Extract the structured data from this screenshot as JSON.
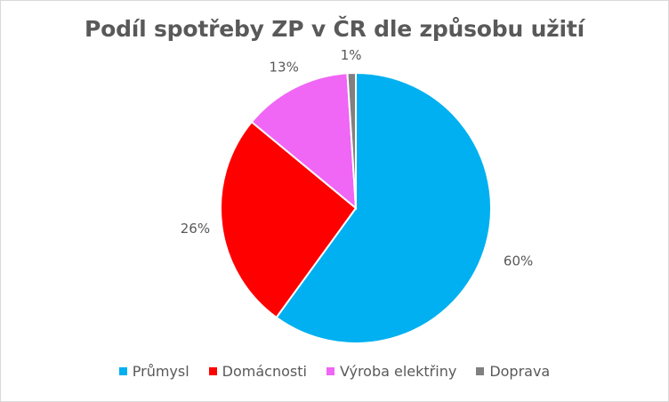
{
  "chart_data": {
    "type": "pie",
    "title": "Podíl spotřeby ZP v ČR dle způsobu užití",
    "categories": [
      "Průmysl",
      "Domácnosti",
      "Výroba elektřiny",
      "Doprava"
    ],
    "values": [
      60,
      26,
      13,
      1
    ],
    "labels": [
      "60%",
      "26%",
      "13%",
      "1%"
    ],
    "colors": [
      "#00b0f0",
      "#ff0000",
      "#f066f5",
      "#808080"
    ],
    "legend_position": "bottom",
    "start_angle": "top, clockwise"
  }
}
